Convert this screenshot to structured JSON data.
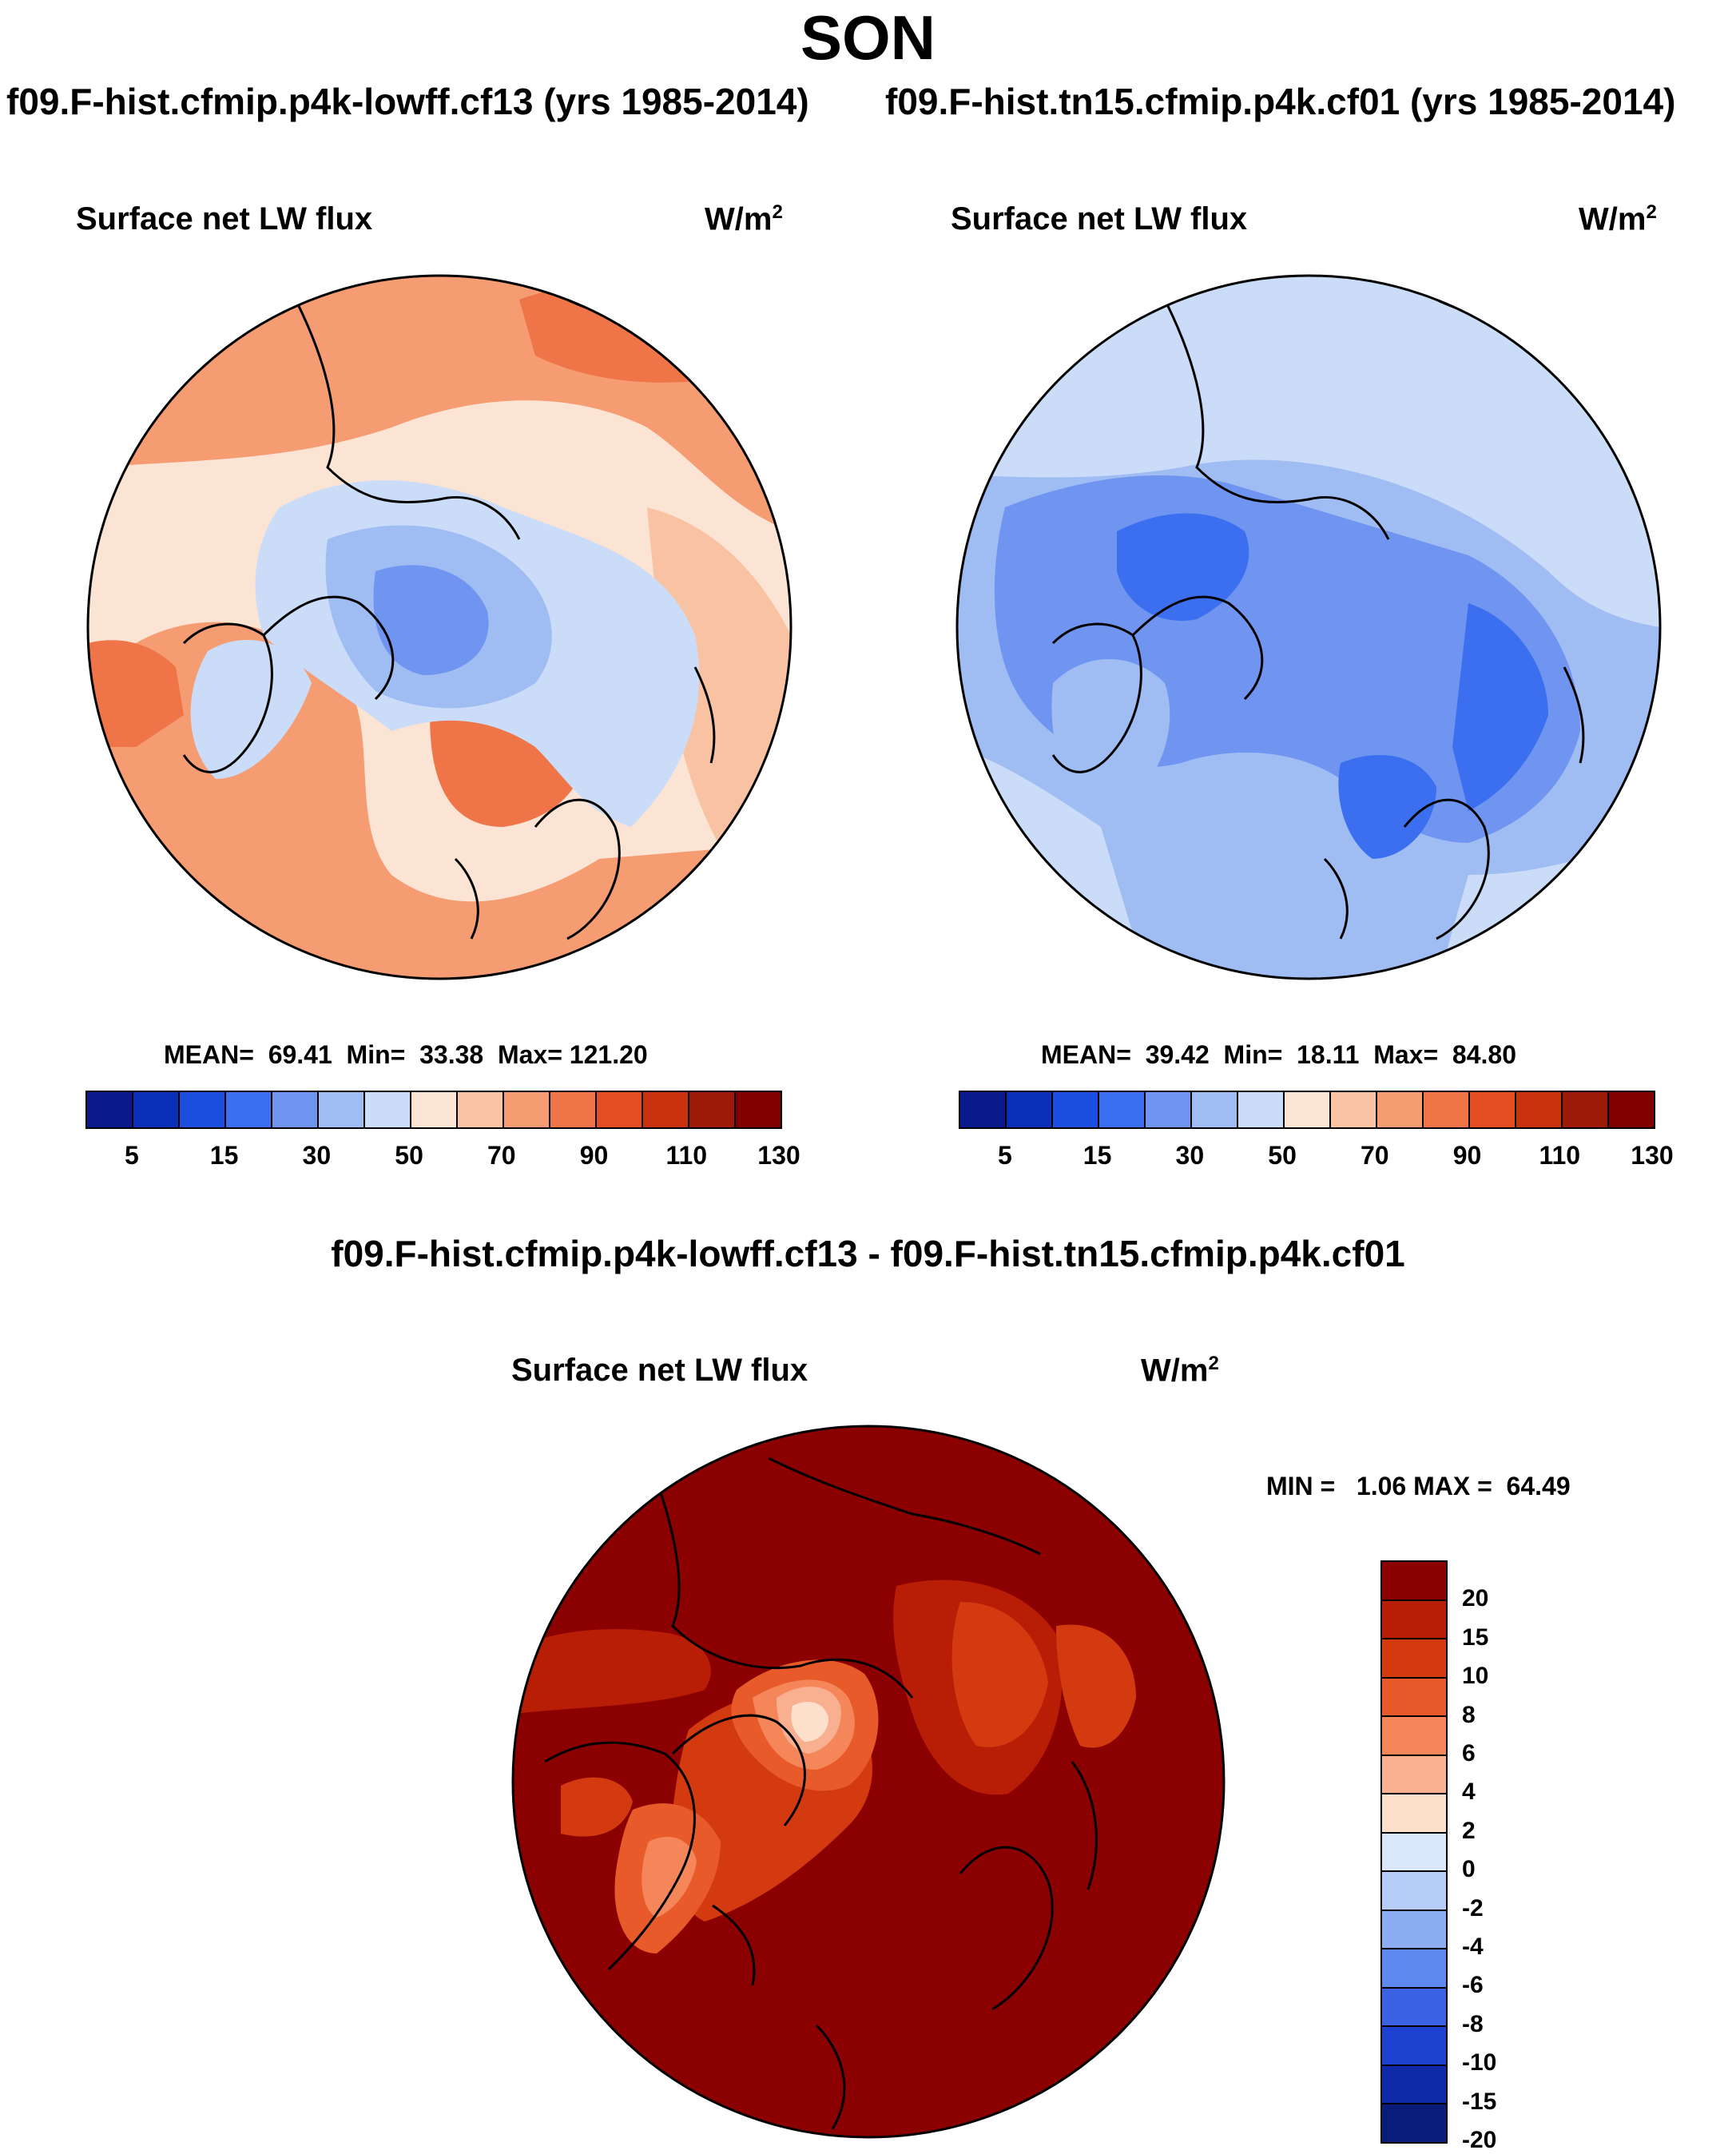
{
  "season": "SON",
  "panels": {
    "left": {
      "run_label": "f09.F-hist.cfmip.p4k-lowff.cf13 (yrs 1985-2014)",
      "title": "Surface net LW flux",
      "units_base": "W/m",
      "units_exp": "2",
      "mean_label": "MEAN=",
      "mean": "69.41",
      "min_label": "Min=",
      "min": "33.38",
      "max_label": "Max=",
      "max": "121.20"
    },
    "right": {
      "run_label": "f09.F-hist.tn15.cfmip.p4k.cf01 (yrs 1985-2014)",
      "title": "Surface net LW flux",
      "units_base": "W/m",
      "units_exp": "2",
      "mean_label": "MEAN=",
      "mean": "39.42",
      "min_label": "Min=",
      "min": "18.11",
      "max_label": "Max=",
      "max": "84.80"
    },
    "diff": {
      "run_label": "f09.F-hist.cfmip.p4k-lowff.cf13 - f09.F-hist.tn15.cfmip.p4k.cf01",
      "title": "Surface net LW flux",
      "units_base": "W/m",
      "units_exp": "2",
      "min_label": "MIN =",
      "min": "1.06",
      "max_label": "MAX =",
      "max": "64.49"
    }
  },
  "colorbar_main": {
    "colors": [
      "#0b1a8a",
      "#0b2fb8",
      "#1c4fe0",
      "#3b6ff0",
      "#6f95f0",
      "#9fbcf3",
      "#cadcf7",
      "#fbe4d4",
      "#f9c3a3",
      "#f59c73",
      "#ef7447",
      "#e44f22",
      "#c9320f",
      "#9b1a08",
      "#800000"
    ],
    "tick_labels": [
      "5",
      "15",
      "30",
      "50",
      "70",
      "90",
      "110",
      "130"
    ]
  },
  "colorbar_diff": {
    "colors": [
      "#8b0000",
      "#b81d06",
      "#d43a10",
      "#e85a2a",
      "#f5865a",
      "#f9b090",
      "#fde0cc",
      "#dbe8fb",
      "#b6cdf7",
      "#8cadf2",
      "#5f89ec",
      "#3a62e2",
      "#1d42cf",
      "#0e2aa8",
      "#0a1c7a"
    ],
    "labels": [
      "20",
      "15",
      "10",
      "8",
      "6",
      "4",
      "2",
      "0",
      "-2",
      "-4",
      "-6",
      "-8",
      "-10",
      "-15",
      "-20"
    ]
  },
  "chart_data": {
    "type": "heatmap",
    "title": "SON",
    "projection": "polar stereographic, Northern Hemisphere",
    "variable": "Surface net LW flux",
    "units": "W/m^2",
    "maps": [
      {
        "name": "f09.F-hist.cfmip.p4k-lowff.cf13 (yrs 1985-2014)",
        "mean": 69.41,
        "min": 33.38,
        "max": 121.2,
        "levels": [
          5,
          10,
          15,
          20,
          30,
          40,
          50,
          60,
          70,
          80,
          90,
          100,
          110,
          120,
          130
        ]
      },
      {
        "name": "f09.F-hist.tn15.cfmip.p4k.cf01 (yrs 1985-2014)",
        "mean": 39.42,
        "min": 18.11,
        "max": 84.8,
        "levels": [
          5,
          10,
          15,
          20,
          30,
          40,
          50,
          60,
          70,
          80,
          90,
          100,
          110,
          120,
          130
        ]
      },
      {
        "name": "f09.F-hist.cfmip.p4k-lowff.cf13 - f09.F-hist.tn15.cfmip.p4k.cf01",
        "min": 1.06,
        "max": 64.49,
        "levels": [
          -20,
          -15,
          -10,
          -8,
          -6,
          -4,
          -2,
          0,
          2,
          4,
          6,
          8,
          10,
          15,
          20
        ]
      }
    ]
  }
}
